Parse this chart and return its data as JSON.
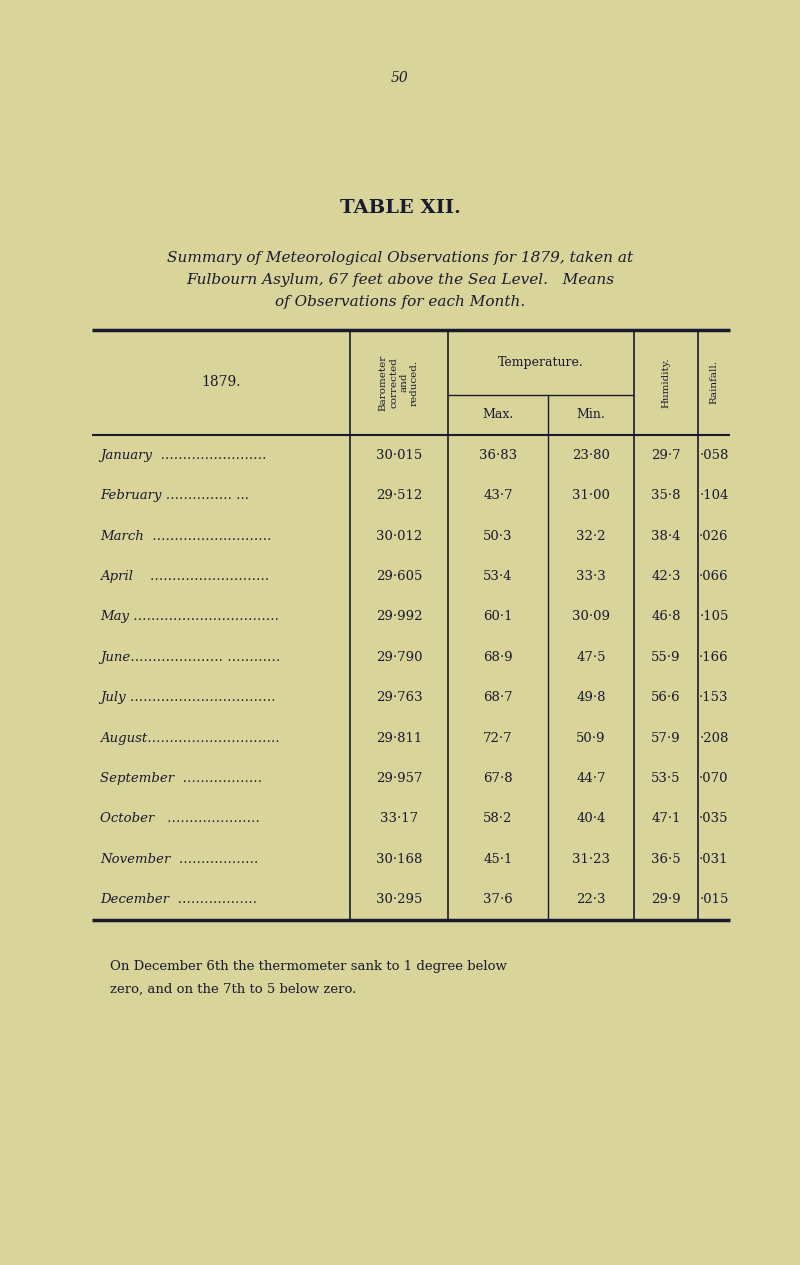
{
  "page_number": "50",
  "title": "TABLE XII.",
  "subtitle_line1": "Summary of Meteorological Observations for 1879, taken at",
  "subtitle_line2": "Fulbourn Asylum, 67 feet above the Sea Level.   Means",
  "subtitle_line3": "of Observations for each Month.",
  "months": [
    "January",
    "February",
    "March",
    "April",
    "May",
    "June",
    "July",
    "August",
    "September",
    "October",
    "November",
    "December"
  ],
  "month_display": [
    "January  ……………………",
    "February …………… ...",
    "March  ………………………",
    "April    ………………………",
    "May ……………………………",
    "June………………… …………",
    "July ……………………………",
    "August…………………………",
    "September  ………………",
    "October   …………………",
    "November  ………………",
    "December  ………………"
  ],
  "barometer": [
    "30·015",
    "29·512",
    "30·012",
    "29·605",
    "29·992",
    "29·790",
    "29·763",
    "29·811",
    "29·957",
    "33·17",
    "30·168",
    "30·295"
  ],
  "temp_max": [
    "36·83",
    "43·7",
    "50·3",
    "53·4",
    "60·1",
    "68·9",
    "68·7",
    "72·7",
    "67·8",
    "58·2",
    "45·1",
    "37·6"
  ],
  "temp_min": [
    "23·80",
    "31·00",
    "32·2",
    "33·3",
    "30·09",
    "47·5",
    "49·8",
    "50·9",
    "44·7",
    "40·4",
    "31·23",
    "22·3"
  ],
  "humidity": [
    "29·7",
    "35·8",
    "38·4",
    "42·3",
    "46·8",
    "55·9",
    "56·6",
    "57·9",
    "53·5",
    "47·1",
    "36·5",
    "29·9"
  ],
  "rainfall": [
    "·058",
    "·104",
    "·026",
    "·066",
    "·105",
    "·166",
    "·153",
    "·208",
    "·070",
    "·035",
    "·031",
    "·015"
  ],
  "footnote_line1": "On December 6th the thermometer sank to 1 degree below",
  "footnote_line2": "zero, and on the 7th to 5 below zero.",
  "bg_color": "#d8d49a",
  "text_color": "#1a1a2e"
}
